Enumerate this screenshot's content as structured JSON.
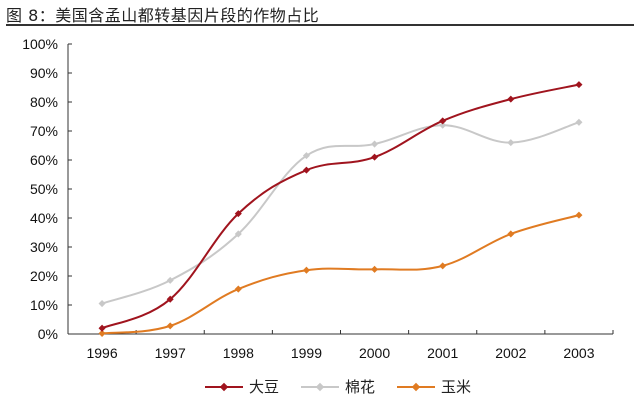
{
  "figure": {
    "title": "图 8：美国含孟山都转基因片段的作物占比"
  },
  "chart_data": {
    "type": "line",
    "title": "图 8：美国含孟山都转基因片段的作物占比",
    "xlabel": "",
    "ylabel": "",
    "categories": [
      "1996",
      "1997",
      "1998",
      "1999",
      "2000",
      "2001",
      "2002",
      "2003"
    ],
    "series": [
      {
        "name": "大豆",
        "color": "#a0141e",
        "values": [
          2,
          12,
          41.5,
          56.5,
          61,
          73.5,
          81,
          86
        ]
      },
      {
        "name": "棉花",
        "color": "#c8c8c8",
        "values": [
          10.5,
          18.5,
          34.5,
          61.5,
          65.5,
          72,
          66,
          73
        ]
      },
      {
        "name": "玉米",
        "color": "#e07b22",
        "values": [
          0.2,
          2.8,
          15.5,
          22,
          22.3,
          23.5,
          34.5,
          41
        ]
      }
    ],
    "yticks": [
      "0%",
      "10%",
      "20%",
      "30%",
      "40%",
      "50%",
      "60%",
      "70%",
      "80%",
      "90%",
      "100%"
    ],
    "ylim": [
      0,
      100
    ],
    "grid": false,
    "legend_position": "bottom",
    "smooth": true
  },
  "legend": {
    "items": [
      {
        "label": "大豆",
        "color": "#a0141e"
      },
      {
        "label": "棉花",
        "color": "#c8c8c8"
      },
      {
        "label": "玉米",
        "color": "#e07b22"
      }
    ]
  }
}
